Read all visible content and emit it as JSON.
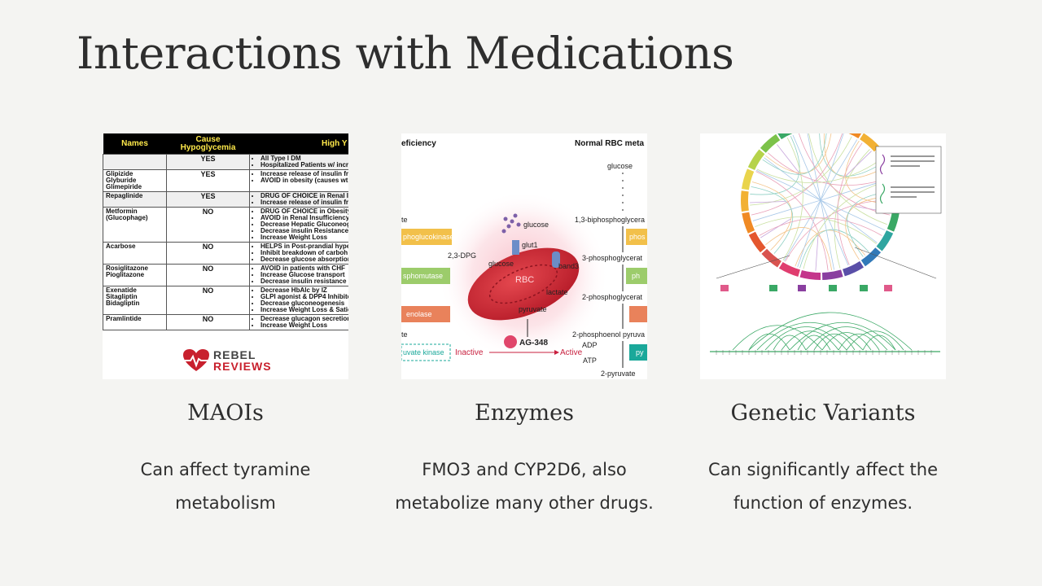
{
  "slide": {
    "title": "Interactions with Medications"
  },
  "cards": [
    {
      "heading": "MAOIs",
      "desc_line1": "Can affect tyramine",
      "desc_line2": "metabolism"
    },
    {
      "heading": "Enzymes",
      "desc_line1": "FMO3 and CYP2D6, also",
      "desc_line2": "metabolize many other drugs."
    },
    {
      "heading": "Genetic Variants",
      "desc_line1": "Can significantly affect the",
      "desc_line2": "function of enzymes."
    }
  ],
  "drug_table": {
    "headers": [
      "Names",
      "Cause Hypoglycemia",
      "High Y"
    ],
    "rows": [
      {
        "names": "",
        "cause": "YES",
        "notes": [
          "All Type I DM",
          "Hospitalized Patients w/ incre"
        ]
      },
      {
        "names": "Glipizide Glyburide Glimepiride",
        "cause": "YES",
        "notes": [
          "Increase release of insulin fr",
          "AVOID in obesity (causes wt g"
        ]
      },
      {
        "names": "Repaglinide",
        "cause": "YES",
        "notes": [
          "DRUG OF CHOICE in Renal Insu",
          "Increase release of insulin fr"
        ]
      },
      {
        "names": "Metformin (Glucophage)",
        "cause": "NO",
        "notes": [
          "DRUG OF CHOICE in Obesity &",
          "AVOID in Renal Insufficiency",
          "Decrease Hepatic Gluconeog",
          "Decrease insulin Resistance",
          "Increase Weight Loss"
        ]
      },
      {
        "names": "Acarbose",
        "cause": "NO",
        "notes": [
          "HELPS in Post-prandial hyperg",
          "Inhibit breakdown of carboh",
          "Decrease glucose absorption"
        ]
      },
      {
        "names": "Rosiglitazone Pioglitazone",
        "cause": "NO",
        "notes": [
          "AVOID in patients with CHF",
          "Increase Glucose transport",
          "Decrease insulin resistance"
        ]
      },
      {
        "names": "Exenatide Sitagliptin Bidagliptin",
        "cause": "NO",
        "notes": [
          "Decrease HbAlc by IZ",
          "GLPI agonist & DPP4 Inhibitor",
          "Decrease gluconeogenesis",
          "Increase Weight Loss & Satie"
        ]
      },
      {
        "names": "Pramlintide",
        "cause": "NO",
        "notes": [
          "Decrease glucagon secretion",
          "Increase Weight Loss"
        ]
      }
    ],
    "logo_line1": "REBEL",
    "logo_line2": "REVIEWS"
  },
  "rbc_diagram": {
    "header_left": "eficiency",
    "header_right": "Normal RBC meta",
    "pathway_right": [
      "glucose",
      "1,3-biphosphoglycera",
      "3-phosphoglycerat",
      "2-phosphoglycerat",
      "2-phosphoenol pyruva",
      "2-pyruvate"
    ],
    "adp": "ADP",
    "atp": "ATP",
    "side_right": [
      "phos",
      "ph",
      "py"
    ],
    "left_boxes": [
      "phoglucokinase",
      "sphomutase",
      "enolase",
      "uvate kinase"
    ],
    "left_labels": [
      "te",
      "te"
    ],
    "dpg": "2,3-DPG",
    "cell_glucose": "glucose",
    "cell_inside_glucose": "glucose",
    "glut1": "glut1",
    "band3": "band3",
    "rbc": "RBC",
    "lactate": "lactate",
    "pyruvate": "pyruvate",
    "drug": "AG-348",
    "inactive": "Inactive",
    "active": "Active"
  }
}
